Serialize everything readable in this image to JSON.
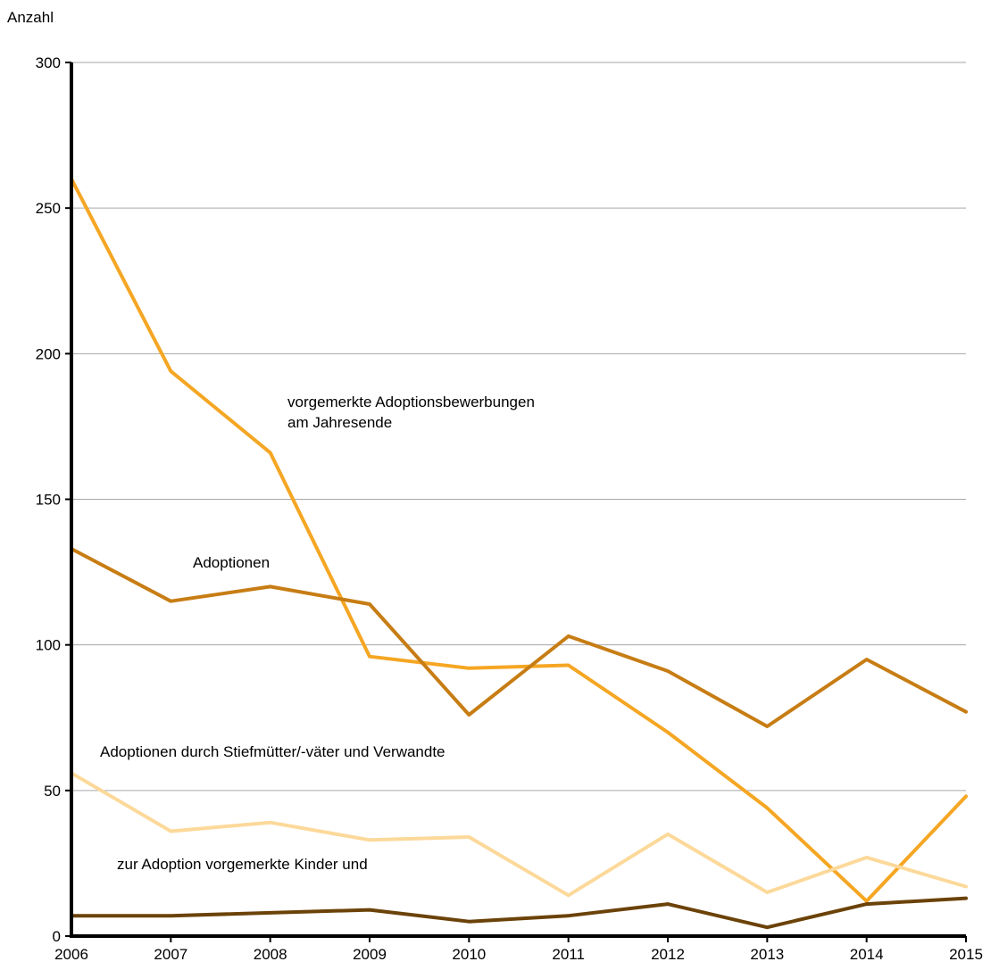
{
  "chart_data": {
    "type": "line",
    "title": "",
    "xlabel": "",
    "ylabel": "Anzahl",
    "x": [
      2006,
      2007,
      2008,
      2009,
      2010,
      2011,
      2012,
      2013,
      2014,
      2015
    ],
    "xticks": [
      "2006",
      "2007",
      "2008",
      "2009",
      "2010",
      "2011",
      "2012",
      "2013",
      "2014",
      "2015"
    ],
    "ylim": [
      0,
      300
    ],
    "yticks": [
      0,
      50,
      100,
      150,
      200,
      250,
      300
    ],
    "ytick_labels": [
      "0",
      "50",
      "100",
      "150",
      "200",
      "250",
      "300"
    ],
    "grid": "horizontal",
    "series": [
      {
        "name": "vorgemerkte Adoptionsbewerbungen am Jahresende",
        "color": "#f5a623",
        "values": [
          260,
          194,
          166,
          96,
          92,
          93,
          70,
          44,
          12,
          48
        ]
      },
      {
        "name": "Adoptionen",
        "color": "#c77d14",
        "values": [
          133,
          115,
          120,
          114,
          76,
          103,
          91,
          72,
          95,
          77
        ]
      },
      {
        "name": "Adoptionen durch Stiefmütter/-väter und Verwandte",
        "color": "#fcd99a",
        "values": [
          56,
          36,
          39,
          33,
          34,
          14,
          35,
          15,
          27,
          17
        ]
      },
      {
        "name": "zur Adoption vorgemerkte Kinder und",
        "color": "#6b4208",
        "values": [
          7,
          7,
          8,
          9,
          5,
          7,
          11,
          3,
          11,
          13
        ]
      }
    ],
    "annotations": [
      {
        "lines": [
          "vorgemerkte Adoptionsbewerbungen",
          "am Jahresende"
        ],
        "series": 0
      },
      {
        "lines": [
          "Adoptionen"
        ],
        "series": 1
      },
      {
        "lines": [
          "Adoptionen durch Stiefmütter/-väter und Verwandte"
        ],
        "series": 2
      },
      {
        "lines": [
          "zur Adoption vorgemerkte Kinder und"
        ],
        "series": 3
      }
    ]
  }
}
